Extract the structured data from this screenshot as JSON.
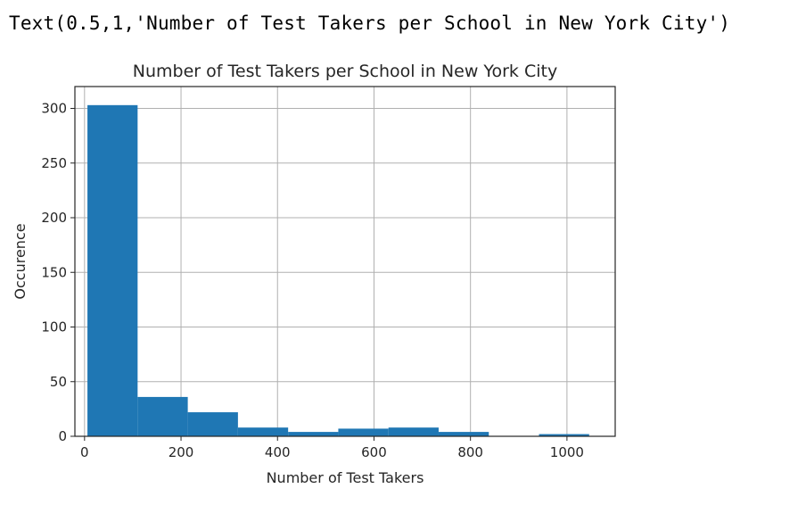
{
  "output": {
    "text": "Text(0.5,1,'Number of Test Takers per School in New York City')"
  },
  "chart_data": {
    "type": "bar",
    "title": "Number of Test Takers per School in New York City",
    "xlabel": "Number of Test Takers",
    "ylabel": "Occurence",
    "xlim": [
      -20,
      1100
    ],
    "ylim": [
      0,
      320
    ],
    "x_ticks": [
      0,
      200,
      400,
      600,
      800,
      1000
    ],
    "y_ticks": [
      0,
      50,
      100,
      150,
      200,
      250,
      300
    ],
    "grid": true,
    "bar_color": "#1f77b4",
    "bins": [
      {
        "x0": 6,
        "x1": 110,
        "count": 303
      },
      {
        "x0": 110,
        "x1": 214,
        "count": 36
      },
      {
        "x0": 214,
        "x1": 318,
        "count": 22
      },
      {
        "x0": 318,
        "x1": 422,
        "count": 8
      },
      {
        "x0": 422,
        "x1": 526,
        "count": 4
      },
      {
        "x0": 526,
        "x1": 630,
        "count": 7
      },
      {
        "x0": 630,
        "x1": 734,
        "count": 8
      },
      {
        "x0": 734,
        "x1": 838,
        "count": 4
      },
      {
        "x0": 838,
        "x1": 942,
        "count": 0
      },
      {
        "x0": 942,
        "x1": 1046,
        "count": 2
      }
    ]
  }
}
